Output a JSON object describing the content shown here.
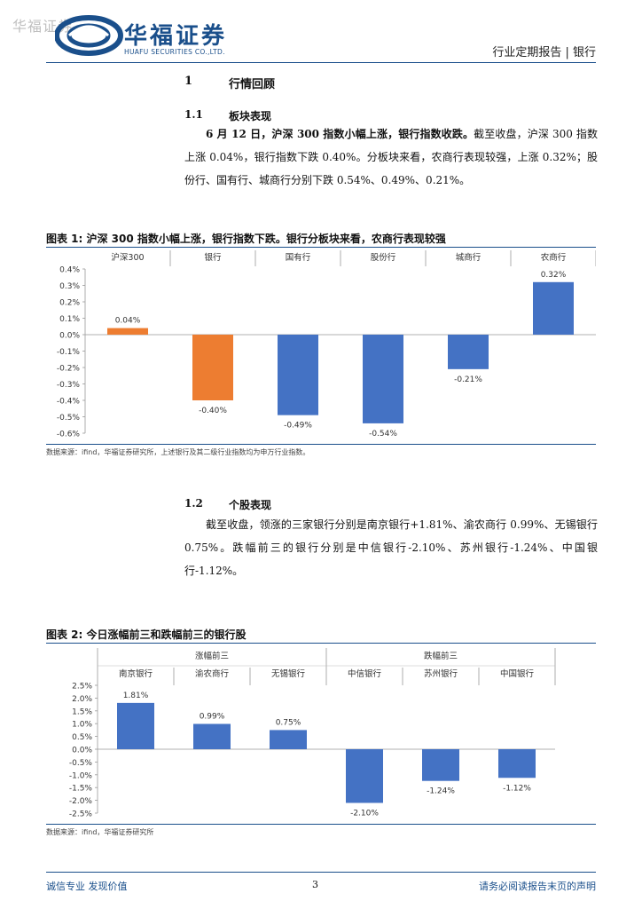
{
  "header": {
    "watermark": "华福证券",
    "logo_cn": "华福证券",
    "logo_en": "HUAFU SECURITIES CO.,LTD.",
    "report_type": "行业定期报告 | 银行"
  },
  "section1": {
    "num": "1",
    "title": "行情回顾"
  },
  "section1_1": {
    "num": "1.1",
    "title": "板块表现",
    "lead": "6 月 12 日，沪深 300 指数小幅上涨，银行指数收跌。",
    "body": "截至收盘，沪深 300 指数上涨 0.04%，银行指数下跌 0.40%。分板块来看，农商行表现较强，上涨 0.32%；股份行、国有行、城商行分别下跌 0.54%、0.49%、0.21%。"
  },
  "figure1": {
    "title": "图表 1:  沪深 300 指数小幅上涨，银行指数下跌。银行分板块来看，农商行表现较强",
    "source": "数据来源：ifind，华福证券研究所，上述银行及其二级行业指数均为申万行业指数。"
  },
  "section1_2": {
    "num": "1.2",
    "title": "个股表现",
    "body": "截至收盘，领涨的三家银行分别是南京银行+1.81%、渝农商行 0.99%、无锡银行 0.75%。跌幅前三的银行分别是中信银行-2.10%、苏州银行-1.24%、中国银行-1.12%。"
  },
  "figure2": {
    "title": "图表 2:  今日涨幅前三和跌幅前三的银行股",
    "source": "数据来源：ifind，华福证券研究所"
  },
  "footer": {
    "left": "诚信专业  发现价值",
    "page": "3",
    "right": "请务必阅读报告末页的声明"
  },
  "chart_data": [
    {
      "type": "bar",
      "categories": [
        "沪深300",
        "银行",
        "国有行",
        "股份行",
        "城商行",
        "农商行"
      ],
      "values": [
        0.04,
        -0.4,
        -0.49,
        -0.54,
        -0.21,
        0.32
      ],
      "value_labels": [
        "0.04%",
        "-0.40%",
        "-0.49%",
        "-0.54%",
        "-0.21%",
        "0.32%"
      ],
      "colors": [
        "#ED7D31",
        "#ED7D31",
        "#4472C4",
        "#4472C4",
        "#4472C4",
        "#4472C4"
      ],
      "yticks": [
        "0.4%",
        "0.3%",
        "0.2%",
        "0.1%",
        "0.0%",
        "-0.1%",
        "-0.2%",
        "-0.3%",
        "-0.4%",
        "-0.5%",
        "-0.6%"
      ],
      "ylim": [
        -0.6,
        0.4
      ],
      "category_position": "top"
    },
    {
      "type": "bar",
      "groups": [
        {
          "name": "涨幅前三",
          "categories": [
            "南京银行",
            "渝农商行",
            "无锡银行"
          ]
        },
        {
          "name": "跌幅前三",
          "categories": [
            "中信银行",
            "苏州银行",
            "中国银行"
          ]
        }
      ],
      "categories": [
        "南京银行",
        "渝农商行",
        "无锡银行",
        "中信银行",
        "苏州银行",
        "中国银行"
      ],
      "values": [
        1.81,
        0.99,
        0.75,
        -2.1,
        -1.24,
        -1.12
      ],
      "value_labels": [
        "1.81%",
        "0.99%",
        "0.75%",
        "-2.10%",
        "-1.24%",
        "-1.12%"
      ],
      "colors": [
        "#4472C4",
        "#4472C4",
        "#4472C4",
        "#4472C4",
        "#4472C4",
        "#4472C4"
      ],
      "yticks": [
        "2.5%",
        "2.0%",
        "1.5%",
        "1.0%",
        "0.5%",
        "0.0%",
        "-0.5%",
        "-1.0%",
        "-1.5%",
        "-2.0%",
        "-2.5%"
      ],
      "ylim": [
        -2.5,
        2.5
      ],
      "category_position": "top"
    }
  ]
}
